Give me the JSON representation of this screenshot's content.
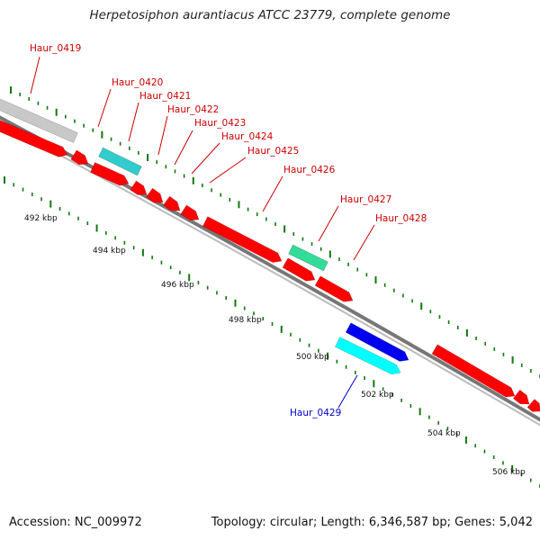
{
  "title": "Herpetosiphon aurantiacus ATCC 23779, complete genome",
  "footer": {
    "accession_label": "Accession:",
    "accession": "NC_009972",
    "topology_label": "Topology:",
    "topology": "circular",
    "length_label": "Length:",
    "length": "6,346,587 bp",
    "genes_label": "Genes:",
    "genes": "5,042"
  },
  "colors": {
    "cds": "#ff0000",
    "cds_dark": "#c80000",
    "rna_teal": "#33cccc",
    "rna_green": "#33dd99",
    "blue_gene": "#0000ee",
    "cyan_gene": "#00ffff",
    "pseudo_gray": "#c8c8c8",
    "backbone": "#777777",
    "tick": "#117711",
    "label_red": "#cc0000",
    "label_blue": "#0000cc"
  },
  "scale_labels": [
    "492 kbp",
    "494 kbp",
    "496 kbp",
    "498 kbp",
    "500 kbp",
    "502 kbp",
    "504 kbp",
    "506 kbp"
  ],
  "gene_labels": [
    {
      "text": "Haur_0419",
      "color": "red"
    },
    {
      "text": "Haur_0420",
      "color": "red"
    },
    {
      "text": "Haur_0421",
      "color": "red"
    },
    {
      "text": "Haur_0422",
      "color": "red"
    },
    {
      "text": "Haur_0423",
      "color": "red"
    },
    {
      "text": "Haur_0424",
      "color": "red"
    },
    {
      "text": "Haur_0425",
      "color": "red"
    },
    {
      "text": "Haur_0426",
      "color": "red"
    },
    {
      "text": "Haur_0427",
      "color": "red"
    },
    {
      "text": "Haur_0428",
      "color": "red"
    },
    {
      "text": "Haur_0429",
      "color": "blue"
    }
  ]
}
